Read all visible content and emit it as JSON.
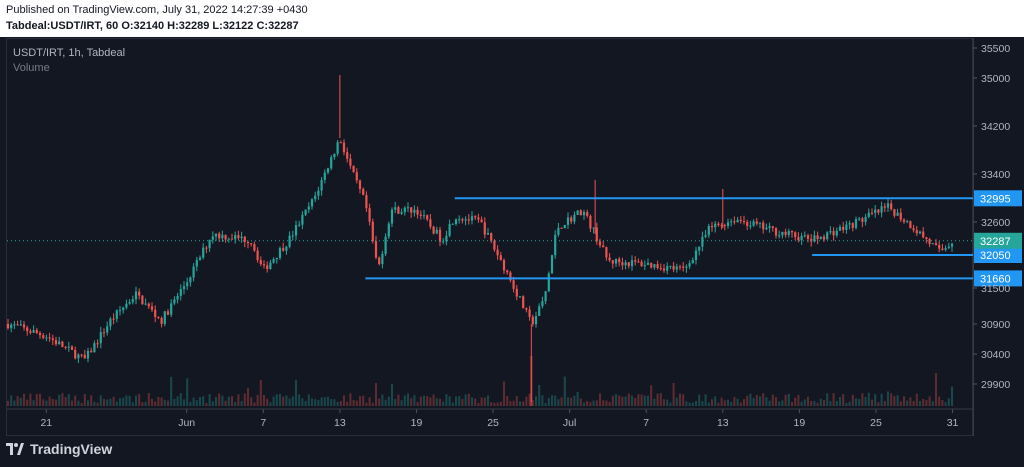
{
  "header": {
    "published": "Published on TradingView.com, July 31, 2022 14:27:39 +0430",
    "ohlc": "Tabdeal:USDT/IRT, 60  O:32140 H:32289 L:32122 C:32287"
  },
  "legend": {
    "symbol": "USDT/IRT, 1h, Tabdeal",
    "volume": "Volume"
  },
  "brand": "TradingView",
  "colors": {
    "up": "#26a69a",
    "down": "#ef5350",
    "level": "#2196f3",
    "last": "#26a69a"
  },
  "chart_data": {
    "type": "candlestick",
    "symbol": "USDT/IRT",
    "interval": "1h",
    "exchange": "Tabdeal",
    "ylim": [
      29600,
      35600
    ],
    "y_ticks": [
      35500,
      35000,
      34200,
      33400,
      32600,
      31500,
      30900,
      30400,
      29900
    ],
    "x_ticks": [
      "21",
      "Jun",
      "7",
      "13",
      "19",
      "25",
      "Jul",
      "7",
      "13",
      "19",
      "25",
      "31"
    ],
    "price_path": [
      {
        "x": "2022-05-18",
        "y": 30900
      },
      {
        "x": "2022-05-21",
        "y": 30700
      },
      {
        "x": "2022-05-24",
        "y": 30300
      },
      {
        "x": "2022-05-26",
        "y": 30950
      },
      {
        "x": "2022-05-28",
        "y": 31400
      },
      {
        "x": "2022-05-30",
        "y": 30950
      },
      {
        "x": "2022-06-01",
        "y": 31600
      },
      {
        "x": "2022-06-03",
        "y": 32400
      },
      {
        "x": "2022-06-06",
        "y": 32300
      },
      {
        "x": "2022-06-07",
        "y": 31800
      },
      {
        "x": "2022-06-09",
        "y": 32300
      },
      {
        "x": "2022-06-11",
        "y": 33000
      },
      {
        "x": "2022-06-13",
        "y": 34000
      },
      {
        "x": "2022-06-14",
        "y": 33400
      },
      {
        "x": "2022-06-15",
        "y": 32900
      },
      {
        "x": "2022-06-16",
        "y": 31800
      },
      {
        "x": "2022-06-17",
        "y": 32800
      },
      {
        "x": "2022-06-19",
        "y": 32800
      },
      {
        "x": "2022-06-21",
        "y": 32300
      },
      {
        "x": "2022-06-22",
        "y": 32700
      },
      {
        "x": "2022-06-24",
        "y": 32600
      },
      {
        "x": "2022-06-26",
        "y": 31800
      },
      {
        "x": "2022-06-28",
        "y": 30900
      },
      {
        "x": "2022-06-29",
        "y": 31300
      },
      {
        "x": "2022-06-30",
        "y": 32500
      },
      {
        "x": "2022-07-02",
        "y": 32800
      },
      {
        "x": "2022-07-03",
        "y": 32400
      },
      {
        "x": "2022-07-04",
        "y": 31950
      },
      {
        "x": "2022-07-07",
        "y": 31900
      },
      {
        "x": "2022-07-10",
        "y": 31800
      },
      {
        "x": "2022-07-12",
        "y": 32500
      },
      {
        "x": "2022-07-14",
        "y": 32650
      },
      {
        "x": "2022-07-17",
        "y": 32450
      },
      {
        "x": "2022-07-20",
        "y": 32300
      },
      {
        "x": "2022-07-23",
        "y": 32550
      },
      {
        "x": "2022-07-26",
        "y": 32850
      },
      {
        "x": "2022-07-28",
        "y": 32500
      },
      {
        "x": "2022-07-30",
        "y": 32100
      },
      {
        "x": "2022-07-31",
        "y": 32287
      }
    ],
    "spikes": [
      {
        "x": "2022-06-13",
        "high": 35050
      },
      {
        "x": "2022-07-03",
        "high": 33300
      },
      {
        "x": "2022-07-13",
        "high": 33150
      },
      {
        "x": "2022-06-28",
        "low": 29600
      }
    ],
    "horizontal_levels": [
      {
        "value": 32995,
        "label": "32995",
        "from": "2022-06-22"
      },
      {
        "value": 32050,
        "label": "32050",
        "from": "2022-07-20"
      },
      {
        "value": 31660,
        "label": "31660",
        "from": "2022-06-15"
      }
    ],
    "last_price": {
      "value": 32287,
      "label": "32287"
    },
    "volume": "Volume",
    "grid": false
  }
}
